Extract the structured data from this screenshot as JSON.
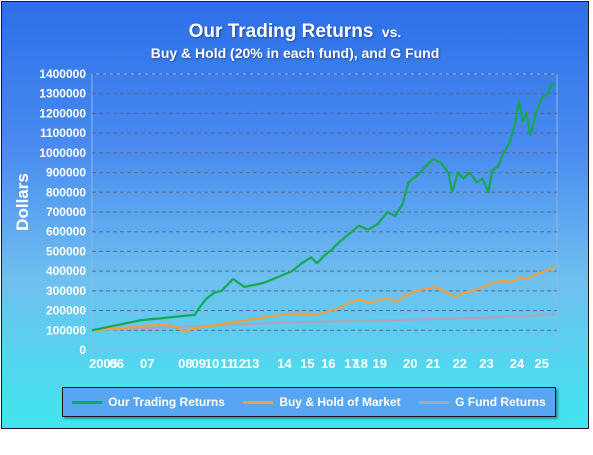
{
  "chart_data": {
    "type": "line",
    "title": "Our Trading Returns",
    "title_suffix": "vs.",
    "subtitle": "Buy & Hold (20% in each fund), and G Fund",
    "ylabel": "Dollars",
    "xlabel": "",
    "ylim": [
      0,
      1400000
    ],
    "yticks": [
      0,
      100000,
      200000,
      300000,
      400000,
      500000,
      600000,
      700000,
      800000,
      900000,
      1000000,
      1100000,
      1200000,
      1300000,
      1400000
    ],
    "xticks": [
      {
        "label": "2005",
        "x": 2005.6
      },
      {
        "label": "06",
        "x": 2006.3
      },
      {
        "label": "07",
        "x": 2007.9
      },
      {
        "label": "08",
        "x": 2009.9
      },
      {
        "label": "09",
        "x": 2010.6
      },
      {
        "label": "10",
        "x": 2011.3
      },
      {
        "label": "11",
        "x": 2012.1
      },
      {
        "label": "12",
        "x": 2012.7
      },
      {
        "label": "13",
        "x": 2013.4
      },
      {
        "label": "14",
        "x": 2015.1
      },
      {
        "label": "15",
        "x": 2016.3
      },
      {
        "label": "16",
        "x": 2017.4
      },
      {
        "label": "17",
        "x": 2018.6
      },
      {
        "label": "18",
        "x": 2019.1
      },
      {
        "label": "19",
        "x": 2020.1
      },
      {
        "label": "20",
        "x": 2021.7
      },
      {
        "label": "21",
        "x": 2022.9
      },
      {
        "label": "22",
        "x": 2024.3
      },
      {
        "label": "23",
        "x": 2025.7
      },
      {
        "label": "24",
        "x": 2027.3
      },
      {
        "label": "25",
        "x": 2028.6
      }
    ],
    "xlim": [
      2005,
      2029.4
    ],
    "grid": true,
    "legend_position": "bottom",
    "series": [
      {
        "name": "Our Trading Returns",
        "color": "#14a850",
        "points": [
          [
            2005.0,
            100000
          ],
          [
            2005.5,
            110000
          ],
          [
            2006.0,
            120000
          ],
          [
            2006.5,
            130000
          ],
          [
            2007.0,
            140000
          ],
          [
            2007.5,
            150000
          ],
          [
            2008.0,
            155000
          ],
          [
            2008.5,
            160000
          ],
          [
            2009.0,
            165000
          ],
          [
            2009.5,
            170000
          ],
          [
            2010.0,
            175000
          ],
          [
            2010.4,
            178000
          ],
          [
            2010.6,
            210000
          ],
          [
            2011.0,
            260000
          ],
          [
            2011.4,
            290000
          ],
          [
            2011.8,
            300000
          ],
          [
            2012.0,
            320000
          ],
          [
            2012.4,
            360000
          ],
          [
            2012.7,
            340000
          ],
          [
            2013.0,
            320000
          ],
          [
            2013.5,
            330000
          ],
          [
            2014.0,
            340000
          ],
          [
            2014.5,
            360000
          ],
          [
            2015.0,
            380000
          ],
          [
            2015.5,
            400000
          ],
          [
            2016.0,
            440000
          ],
          [
            2016.5,
            470000
          ],
          [
            2016.8,
            440000
          ],
          [
            2017.2,
            480000
          ],
          [
            2017.6,
            510000
          ],
          [
            2018.0,
            550000
          ],
          [
            2018.5,
            590000
          ],
          [
            2019.0,
            630000
          ],
          [
            2019.5,
            610000
          ],
          [
            2020.0,
            640000
          ],
          [
            2020.5,
            700000
          ],
          [
            2020.9,
            680000
          ],
          [
            2021.3,
            740000
          ],
          [
            2021.6,
            850000
          ],
          [
            2022.0,
            880000
          ],
          [
            2022.5,
            930000
          ],
          [
            2022.9,
            970000
          ],
          [
            2023.3,
            950000
          ],
          [
            2023.7,
            900000
          ],
          [
            2023.9,
            800000
          ],
          [
            2024.2,
            900000
          ],
          [
            2024.5,
            870000
          ],
          [
            2024.8,
            900000
          ],
          [
            2025.2,
            850000
          ],
          [
            2025.5,
            870000
          ],
          [
            2025.8,
            800000
          ],
          [
            2026.0,
            910000
          ],
          [
            2026.3,
            930000
          ],
          [
            2026.6,
            1000000
          ],
          [
            2026.9,
            1050000
          ],
          [
            2027.2,
            1150000
          ],
          [
            2027.4,
            1265000
          ],
          [
            2027.6,
            1160000
          ],
          [
            2027.8,
            1200000
          ],
          [
            2028.0,
            1090000
          ],
          [
            2028.3,
            1200000
          ],
          [
            2028.6,
            1280000
          ],
          [
            2028.9,
            1300000
          ],
          [
            2029.1,
            1350000
          ],
          [
            2029.3,
            1340000
          ]
        ]
      },
      {
        "name": "Buy & Hold of Market",
        "color": "#f0a040",
        "points": [
          [
            2005.0,
            100000
          ],
          [
            2006.0,
            110000
          ],
          [
            2007.0,
            115000
          ],
          [
            2008.0,
            125000
          ],
          [
            2009.0,
            130000
          ],
          [
            2009.5,
            110000
          ],
          [
            2009.9,
            95000
          ],
          [
            2010.3,
            110000
          ],
          [
            2011.0,
            120000
          ],
          [
            2012.0,
            135000
          ],
          [
            2013.0,
            150000
          ],
          [
            2014.0,
            165000
          ],
          [
            2015.0,
            180000
          ],
          [
            2016.0,
            185000
          ],
          [
            2016.8,
            180000
          ],
          [
            2017.5,
            200000
          ],
          [
            2018.0,
            215000
          ],
          [
            2018.5,
            240000
          ],
          [
            2019.0,
            255000
          ],
          [
            2019.5,
            240000
          ],
          [
            2020.0,
            250000
          ],
          [
            2020.5,
            265000
          ],
          [
            2021.0,
            245000
          ],
          [
            2021.5,
            280000
          ],
          [
            2022.0,
            300000
          ],
          [
            2022.5,
            310000
          ],
          [
            2023.0,
            320000
          ],
          [
            2023.5,
            300000
          ],
          [
            2024.0,
            270000
          ],
          [
            2024.5,
            290000
          ],
          [
            2025.0,
            300000
          ],
          [
            2025.5,
            320000
          ],
          [
            2026.0,
            340000
          ],
          [
            2026.5,
            350000
          ],
          [
            2027.0,
            345000
          ],
          [
            2027.5,
            370000
          ],
          [
            2027.8,
            360000
          ],
          [
            2028.2,
            380000
          ],
          [
            2028.6,
            395000
          ],
          [
            2029.0,
            405000
          ],
          [
            2029.3,
            420000
          ]
        ]
      },
      {
        "name": "G Fund Returns",
        "color": "#b0a4b8",
        "points": [
          [
            2005.0,
            100000
          ],
          [
            2010.0,
            120000
          ],
          [
            2015.0,
            138000
          ],
          [
            2020.0,
            150000
          ],
          [
            2025.0,
            162000
          ],
          [
            2029.3,
            180000
          ]
        ]
      }
    ]
  }
}
